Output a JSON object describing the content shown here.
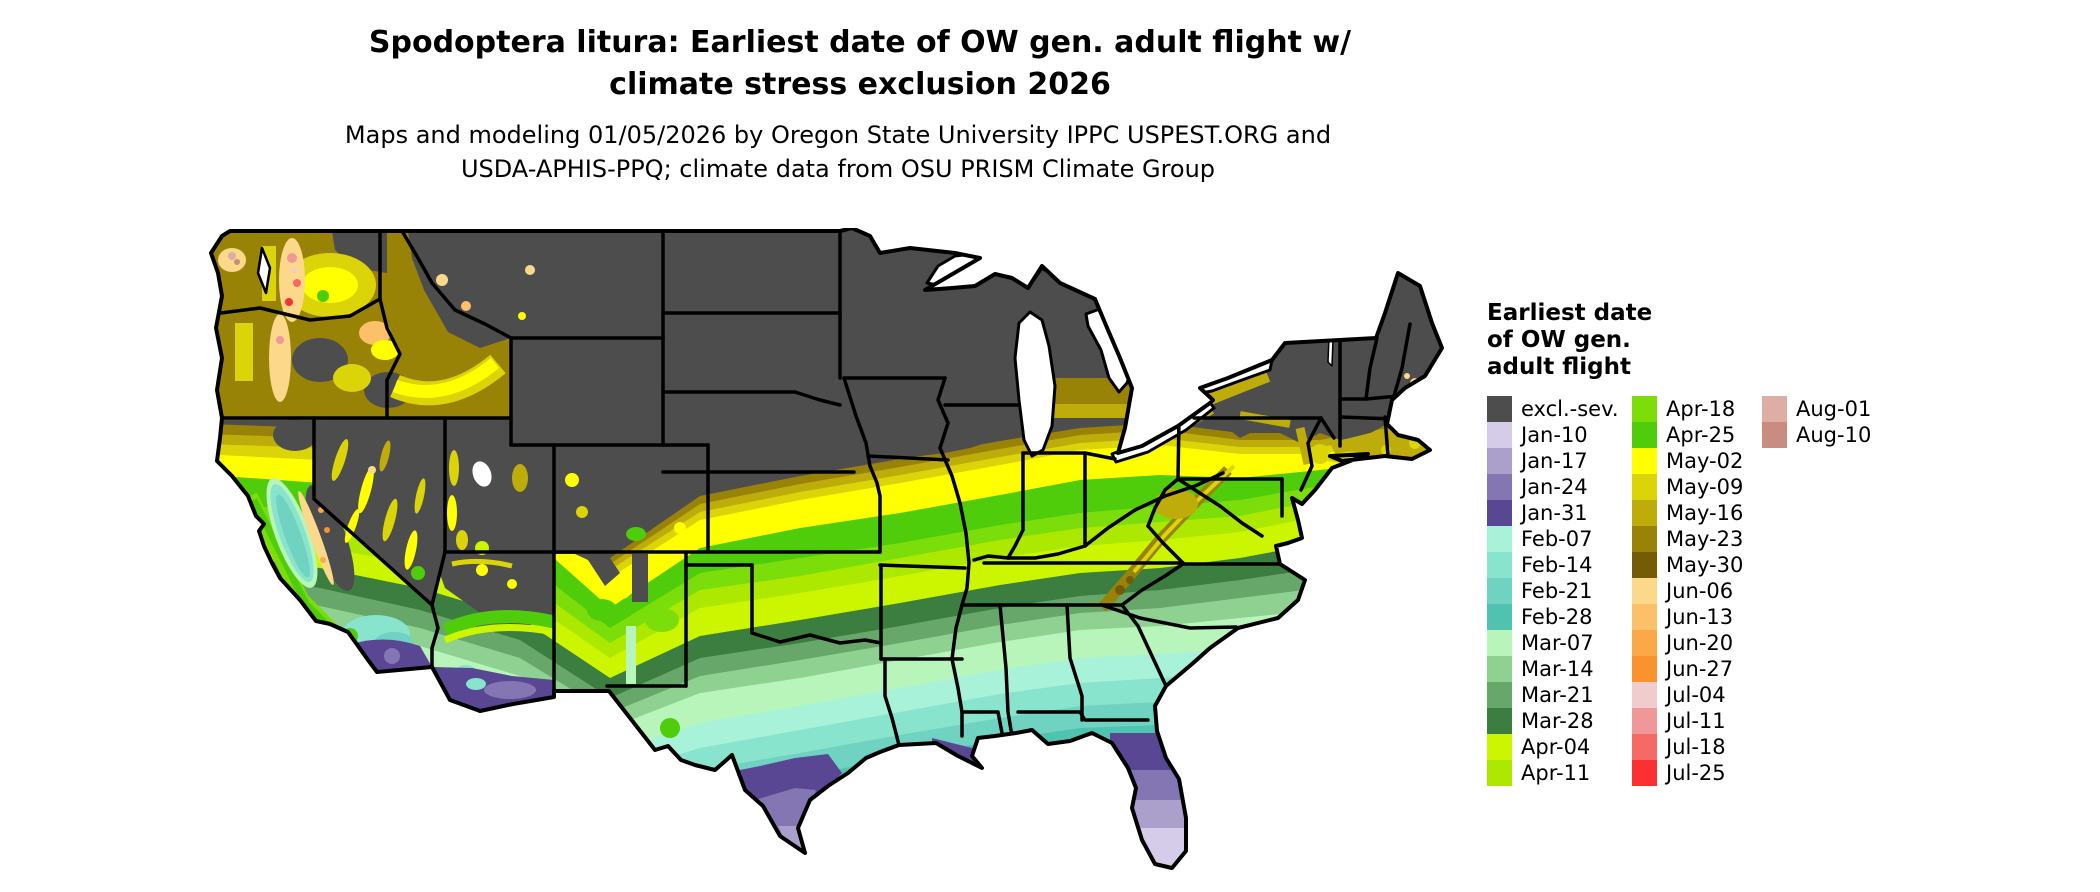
{
  "title": {
    "line1": "Spodoptera litura: Earliest date of OW gen. adult flight w/",
    "line2": "climate stress exclusion 2026"
  },
  "subtitle": {
    "line1": "Maps and modeling 01/05/2026 by Oregon State University IPPC USPEST.ORG and",
    "line2": "USDA-APHIS-PPQ; climate data from OSU PRISM Climate Group"
  },
  "legend": {
    "title_lines": [
      "Earliest date",
      "of OW gen.",
      "adult flight"
    ],
    "columns": [
      [
        "excl.-sev.",
        "Jan-10",
        "Jan-17",
        "Jan-24",
        "Jan-31",
        "Feb-07",
        "Feb-14",
        "Feb-21",
        "Feb-28",
        "Mar-07",
        "Mar-14",
        "Mar-21",
        "Mar-28",
        "Apr-04",
        "Apr-11"
      ],
      [
        "Apr-18",
        "Apr-25",
        "May-02",
        "May-09",
        "May-16",
        "May-23",
        "May-30",
        "Jun-06",
        "Jun-13",
        "Jun-20",
        "Jun-27",
        "Jul-04",
        "Jul-11",
        "Jul-18",
        "Jul-25"
      ],
      [
        "Aug-01",
        "Aug-10"
      ]
    ]
  },
  "colors": {
    "excl.-sev.": "#4d4d4d",
    "Jan-10": "#d4cce8",
    "Jan-17": "#aba0cc",
    "Jan-24": "#8476b2",
    "Jan-31": "#5a4794",
    "Feb-07": "#a8f2da",
    "Feb-14": "#88e4cc",
    "Feb-21": "#70d2c0",
    "Feb-28": "#50c2b0",
    "Mar-07": "#b8f5ba",
    "Mar-14": "#8ed191",
    "Mar-21": "#67a76a",
    "Mar-28": "#3b7e40",
    "Apr-04": "#ccf500",
    "Apr-11": "#ace800",
    "Apr-18": "#7bde0a",
    "Apr-25": "#4fcc0a",
    "May-02": "#ffff00",
    "May-09": "#dad408",
    "May-16": "#beac0a",
    "May-23": "#998306",
    "May-30": "#745c06",
    "Jun-06": "#fcd88a",
    "Jun-13": "#fcc068",
    "Jun-20": "#faa848",
    "Jun-27": "#fa9230",
    "Jul-04": "#f1cccc",
    "Jul-11": "#f09898",
    "Jul-18": "#f56a64",
    "Jul-25": "#fa3032",
    "Aug-01": "#dcaea6",
    "Aug-10": "#c88c80"
  },
  "chart_data": {
    "type": "heatmap",
    "title": "Spodoptera litura: Earliest date of OW gen. adult flight w/ climate stress exclusion 2026",
    "legend_title": "Earliest date of OW gen. adult flight",
    "categories": [
      "excl.-sev.",
      "Jan-10",
      "Jan-17",
      "Jan-24",
      "Jan-31",
      "Feb-07",
      "Feb-14",
      "Feb-21",
      "Feb-28",
      "Mar-07",
      "Mar-14",
      "Mar-21",
      "Mar-28",
      "Apr-04",
      "Apr-11",
      "Apr-18",
      "Apr-25",
      "May-02",
      "May-09",
      "May-16",
      "May-23",
      "May-30",
      "Jun-06",
      "Jun-13",
      "Jun-20",
      "Jun-27",
      "Jul-04",
      "Jul-11",
      "Jul-18",
      "Jul-25",
      "Aug-01",
      "Aug-10"
    ],
    "map_extent": "Contiguous United States with state borders; Great Lakes shown white",
    "geographic_pattern": {
      "excl.-sev.": "Entire northern tier: MT, ND, SD, MN, WI, upper MI, WY, CO Rockies, NV/UT/ID mountain masses, upstate NY, most of northern New England and Maine",
      "Jan-10_to_Jan-31": "Southern tip of Texas, southern half of Florida peninsula, Louisiana delta coast, coastal southern California and southern Arizona (purple shades)",
      "Feb-07_to_Feb-28": "Gulf coastal plain, coastal Carolinas/Georgia, deep south Texas, California Central Valley and Mojave (teal/mint shades)",
      "Mar-07_to_Mar-28": "Northern Gulf states, Arkansas, Oklahoma south, central Texas, coastal plain of NC/SC (green shades)",
      "Apr-04_to_Apr-25": "Tennessee and Ohio valleys, Missouri, Kansas, Virginia, Kentucky (bright green / chartreuse bands)",
      "May-02_to_May-30": "Corn Belt: s. Iowa, Illinois, Indiana, Ohio, Pennsylvania, s. Michigan, s. New England, PNW interior valleys (yellow / olive bands)",
      "Jun_Jul": "Cascade and Sierra mountain fringes, coastal Maine spots (orange / peach / pink / red patches)",
      "Aug-01_Aug-10": "Small high-elevation spots in Washington's Olympic and Cascade ranges (dusty rose patches)"
    }
  }
}
